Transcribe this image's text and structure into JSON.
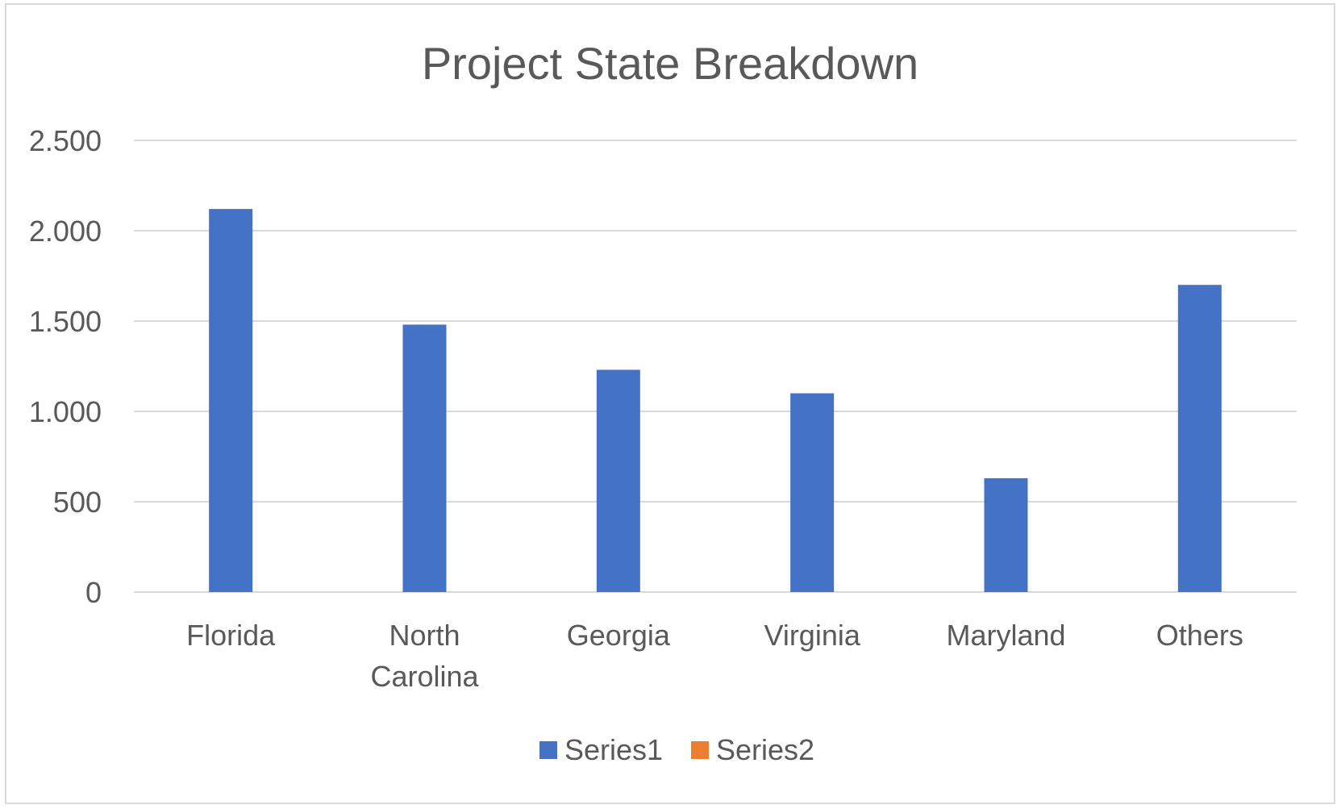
{
  "chart_data": {
    "type": "bar",
    "title": "Project State Breakdown",
    "categories": [
      "Florida",
      "North Carolina",
      "Georgia",
      "Virginia",
      "Maryland",
      "Others"
    ],
    "category_lines": [
      [
        "Florida"
      ],
      [
        "North",
        "Carolina"
      ],
      [
        "Georgia"
      ],
      [
        "Virginia"
      ],
      [
        "Maryland"
      ],
      [
        "Others"
      ]
    ],
    "series": [
      {
        "name": "Series1",
        "color": "#4472c4",
        "values": [
          2120,
          1480,
          1230,
          1100,
          630,
          1700
        ]
      },
      {
        "name": "Series2",
        "color": "#ed7d31",
        "values": [
          null,
          null,
          null,
          null,
          null,
          null
        ]
      }
    ],
    "yticks": [
      0,
      500,
      1000,
      1500,
      2000,
      2500
    ],
    "ytick_labels": [
      "0",
      "500",
      "1.000",
      "1.500",
      "2.000",
      "2.500"
    ],
    "ylim": [
      0,
      2500
    ],
    "xlabel": "",
    "ylabel": "",
    "grid": true,
    "legend_position": "bottom",
    "gridline_color": "#d9d9d9"
  }
}
